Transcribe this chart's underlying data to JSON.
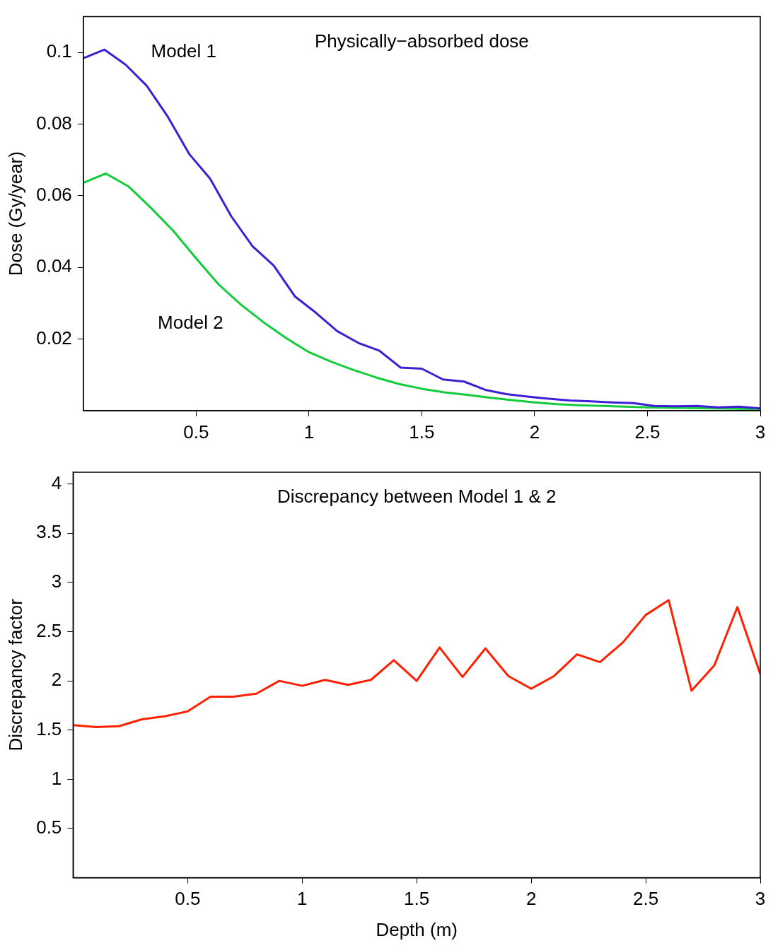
{
  "chart_data": [
    {
      "type": "line",
      "title": "Physically−absorbed dose",
      "ylabel": "Dose (Gy/year)",
      "marker": "none",
      "xlim": [
        0,
        3
      ],
      "xticks": [
        0.5,
        1,
        1.5,
        2,
        2.5,
        3
      ],
      "ylim": [
        0,
        0.11
      ],
      "yticks": [
        0.02,
        0.04,
        0.06,
        0.08,
        0.1
      ],
      "series": [
        {
          "name": "Model 1",
          "color": "#3c1fd6",
          "x": [
            0,
            0.09375,
            0.1875,
            0.28125,
            0.375,
            0.46875,
            0.5625,
            0.65625,
            0.75,
            0.84375,
            0.9375,
            1.03125,
            1.125,
            1.21875,
            1.3125,
            1.40625,
            1.5,
            1.59375,
            1.6875,
            1.78125,
            1.875,
            1.96875,
            2.0625,
            2.15625,
            2.25,
            2.34375,
            2.4375,
            2.53125,
            2.625,
            2.71875,
            2.8125,
            2.90625,
            3
          ],
          "values": [
            0.0984,
            0.1008,
            0.0966,
            0.0907,
            0.082,
            0.0717,
            0.0647,
            0.0542,
            0.0459,
            0.0405,
            0.0319,
            0.0273,
            0.0222,
            0.0189,
            0.0167,
            0.012,
            0.0117,
            0.0087,
            0.0081,
            0.0058,
            0.0046,
            0.0039,
            0.0033,
            0.0028,
            0.0026,
            0.0023,
            0.0021,
            0.0013,
            0.0012,
            0.0013,
            0.0009,
            0.0011,
            0.0006
          ]
        },
        {
          "name": "Model 2",
          "color": "#12cc3a",
          "x": [
            0,
            0.1,
            0.2,
            0.3,
            0.4,
            0.5,
            0.6,
            0.7,
            0.8,
            0.9,
            1,
            1.1,
            1.2,
            1.3,
            1.4,
            1.5,
            1.6,
            1.7,
            1.8,
            1.9,
            2,
            2.1,
            2.2,
            2.3,
            2.4,
            2.5,
            2.6,
            2.7,
            2.8,
            2.9,
            3
          ],
          "values": [
            0.0636,
            0.0662,
            0.0626,
            0.0566,
            0.0501,
            0.0425,
            0.0352,
            0.0295,
            0.0246,
            0.0202,
            0.0163,
            0.0136,
            0.0113,
            0.0092,
            0.0074,
            0.0061,
            0.0051,
            0.0044,
            0.0036,
            0.0029,
            0.0023,
            0.0018,
            0.0015,
            0.0013,
            0.0011,
            0.0009,
            0.0008,
            0.0007,
            0.0006,
            0.0005,
            0.0004
          ]
        }
      ]
    },
    {
      "type": "line",
      "title": "Discrepancy between Model 1 & 2",
      "xlabel": "Depth (m)",
      "ylabel": "Discrepancy factor",
      "marker": "none",
      "xlim": [
        0,
        3
      ],
      "xticks": [
        0.5,
        1,
        1.5,
        2,
        2.5,
        3
      ],
      "ylim": [
        0,
        4.12
      ],
      "yticks": [
        0.5,
        1,
        1.5,
        2,
        2.5,
        3,
        3.5,
        4
      ],
      "series": [
        {
          "color": "#ff2200",
          "x": [
            0,
            0.1,
            0.2,
            0.3,
            0.4,
            0.5,
            0.6,
            0.7,
            0.8,
            0.9,
            1,
            1.1,
            1.2,
            1.3,
            1.4,
            1.5,
            1.6,
            1.7,
            1.8,
            1.9,
            2,
            2.1,
            2.2,
            2.3,
            2.4,
            2.5,
            2.6,
            2.7,
            2.8,
            2.9,
            3
          ],
          "values": [
            1.55,
            1.53,
            1.54,
            1.61,
            1.64,
            1.69,
            1.84,
            1.84,
            1.87,
            2.0,
            1.95,
            2.01,
            1.96,
            2.01,
            2.21,
            2.0,
            2.34,
            2.04,
            2.33,
            2.05,
            1.92,
            2.05,
            2.27,
            2.19,
            2.39,
            2.67,
            2.82,
            1.9,
            2.16,
            2.75,
            2.07
          ]
        }
      ]
    }
  ]
}
